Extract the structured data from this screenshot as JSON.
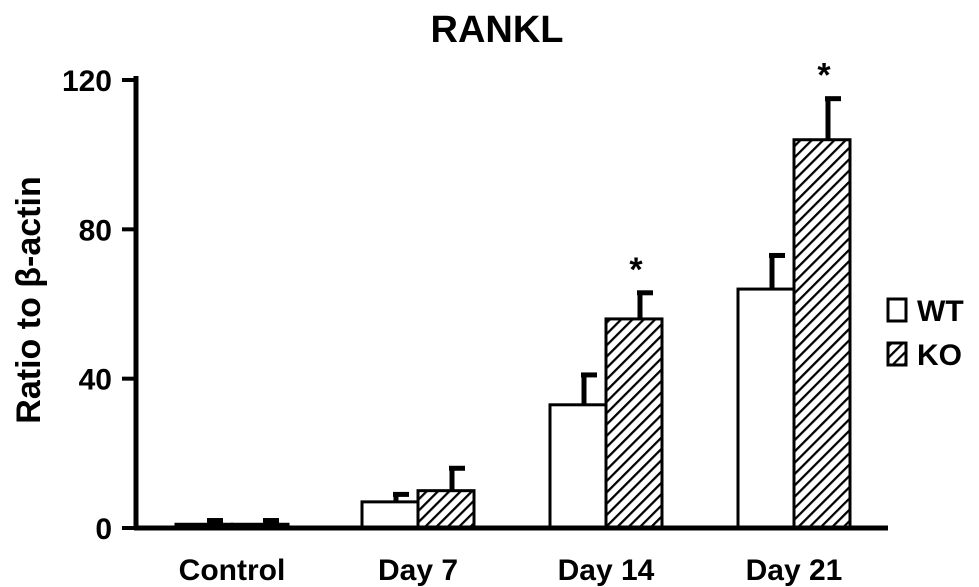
{
  "chart_data": {
    "type": "bar",
    "title": "RANKL",
    "xlabel": "",
    "ylabel": "Ratio to β-actin",
    "ylim": [
      0,
      120
    ],
    "yticks": [
      "0",
      "40",
      "80",
      "120"
    ],
    "categories": [
      "Control",
      "Day 7",
      "Day 14",
      "Day 21"
    ],
    "series": [
      {
        "name": "WT",
        "values": [
          1,
          7,
          33,
          64
        ],
        "errors": [
          1,
          2,
          8,
          9
        ],
        "pattern": "open",
        "color": "#ffffff"
      },
      {
        "name": "KO",
        "values": [
          1,
          10,
          56,
          104
        ],
        "errors": [
          1,
          6,
          7,
          11
        ],
        "pattern": "hatched",
        "color": "#000000"
      }
    ],
    "annotations": [
      {
        "category": "Day 14",
        "series": "KO",
        "text": "*"
      },
      {
        "category": "Day 21",
        "series": "KO",
        "text": "*"
      }
    ],
    "grid": false,
    "legend": "right"
  }
}
